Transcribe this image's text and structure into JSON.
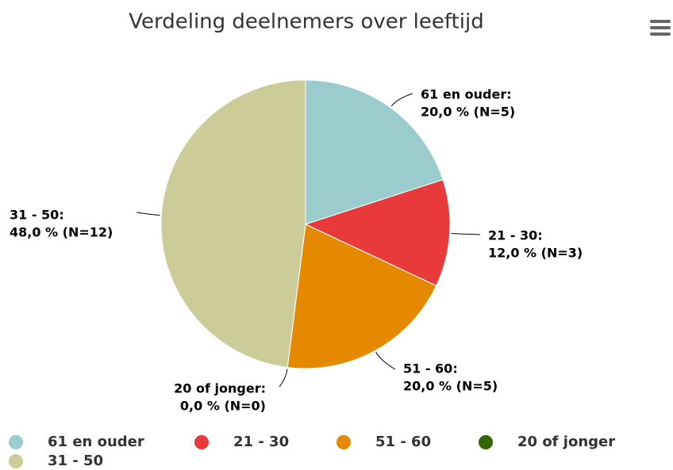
{
  "chart_data": {
    "type": "pie",
    "title": "Verdeling deelnemers over leeftijd",
    "categories": [
      "61 en ouder",
      "21 - 30",
      "51 - 60",
      "20 of jonger",
      "31 - 50"
    ],
    "values": [
      20,
      12,
      20,
      0,
      48
    ],
    "point_labels": [
      "61 en ouder:",
      "21 - 30:",
      "51 - 60:",
      "20 of jonger:",
      "31 - 50:"
    ],
    "value_labels": [
      "20,0 % (N=5)",
      "12,0 % (N=3)",
      "20,0 % (N=5)",
      "0,0 % (N=0)",
      "48,0 % (N=12)"
    ],
    "colors": [
      "#9acccd",
      "#e8393b",
      "#e58900",
      "#336600",
      "#cccc99"
    ],
    "legend": "bottom"
  }
}
